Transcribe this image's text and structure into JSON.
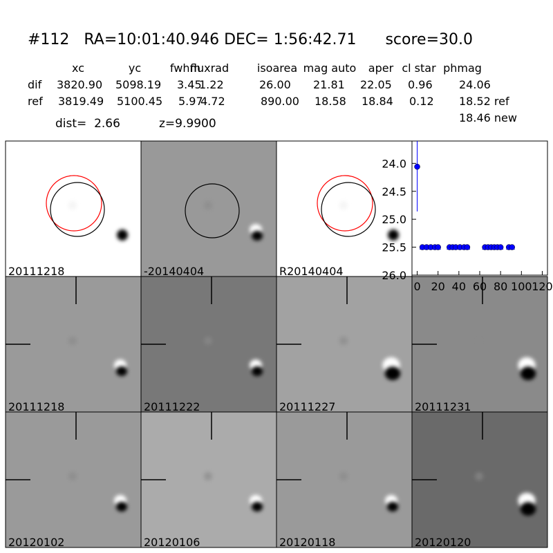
{
  "header": {
    "title": "#112   RA=10:01:40.946 DEC= 1:56:42.71      score=30.0",
    "columns": [
      "xc",
      "yc",
      "fwhm",
      "fluxrad",
      "isoarea",
      "mag auto",
      "aper",
      "cl star",
      "phmag"
    ],
    "rows": [
      {
        "label": "dif",
        "cells": [
          "3820.90",
          "5098.19",
          "3.45",
          "1.22",
          "26.00",
          "21.81",
          "22.05",
          "0.96",
          "24.06"
        ]
      },
      {
        "label": "ref",
        "cells": [
          "3819.49",
          "5100.45",
          "5.97",
          "4.72",
          "890.00",
          "18.58",
          "18.84",
          "0.12",
          "18.52 ref"
        ]
      }
    ],
    "extra": "18.46 new",
    "dist": "dist=  2.66",
    "z": "z=9.9900"
  },
  "panels": [
    {
      "label": "20111218"
    },
    {
      "label": "-20140404"
    },
    {
      "label": "R20140404"
    },
    {
      "label": "20111218",
      "color": "#ff0000"
    },
    {
      "label": "20111222"
    },
    {
      "label": "20111227"
    },
    {
      "label": "20111231"
    },
    {
      "label": "20120102"
    },
    {
      "label": "20120106"
    },
    {
      "label": "20120118"
    },
    {
      "label": "20120120"
    }
  ],
  "chart_data": {
    "type": "scatter",
    "color": "#0000ff",
    "x": [
      0,
      5,
      9,
      13,
      17,
      20,
      31,
      34,
      37,
      41,
      45,
      48,
      65,
      68,
      71,
      74,
      77,
      80,
      88,
      91
    ],
    "values": [
      24.06,
      25.5,
      25.5,
      25.5,
      25.5,
      25.5,
      25.5,
      25.5,
      25.5,
      25.5,
      25.5,
      25.5,
      25.5,
      25.5,
      25.5,
      25.5,
      25.5,
      25.5,
      25.5,
      25.5
    ],
    "errors": [
      0.8,
      null,
      null,
      null,
      null,
      null,
      null,
      null,
      null,
      null,
      null,
      null,
      null,
      null,
      null,
      null,
      null,
      null,
      null,
      null
    ],
    "xlim": [
      -5,
      125
    ],
    "ylim": [
      26,
      23.6
    ],
    "xticks": [
      0,
      20,
      40,
      60,
      80,
      100,
      120
    ],
    "yticks": [
      {
        "value": 24,
        "label": "24.0"
      },
      24.5,
      {
        "value": 25,
        "label": "25.0"
      },
      25.5,
      {
        "value": 26,
        "label": "26.0"
      }
    ]
  }
}
